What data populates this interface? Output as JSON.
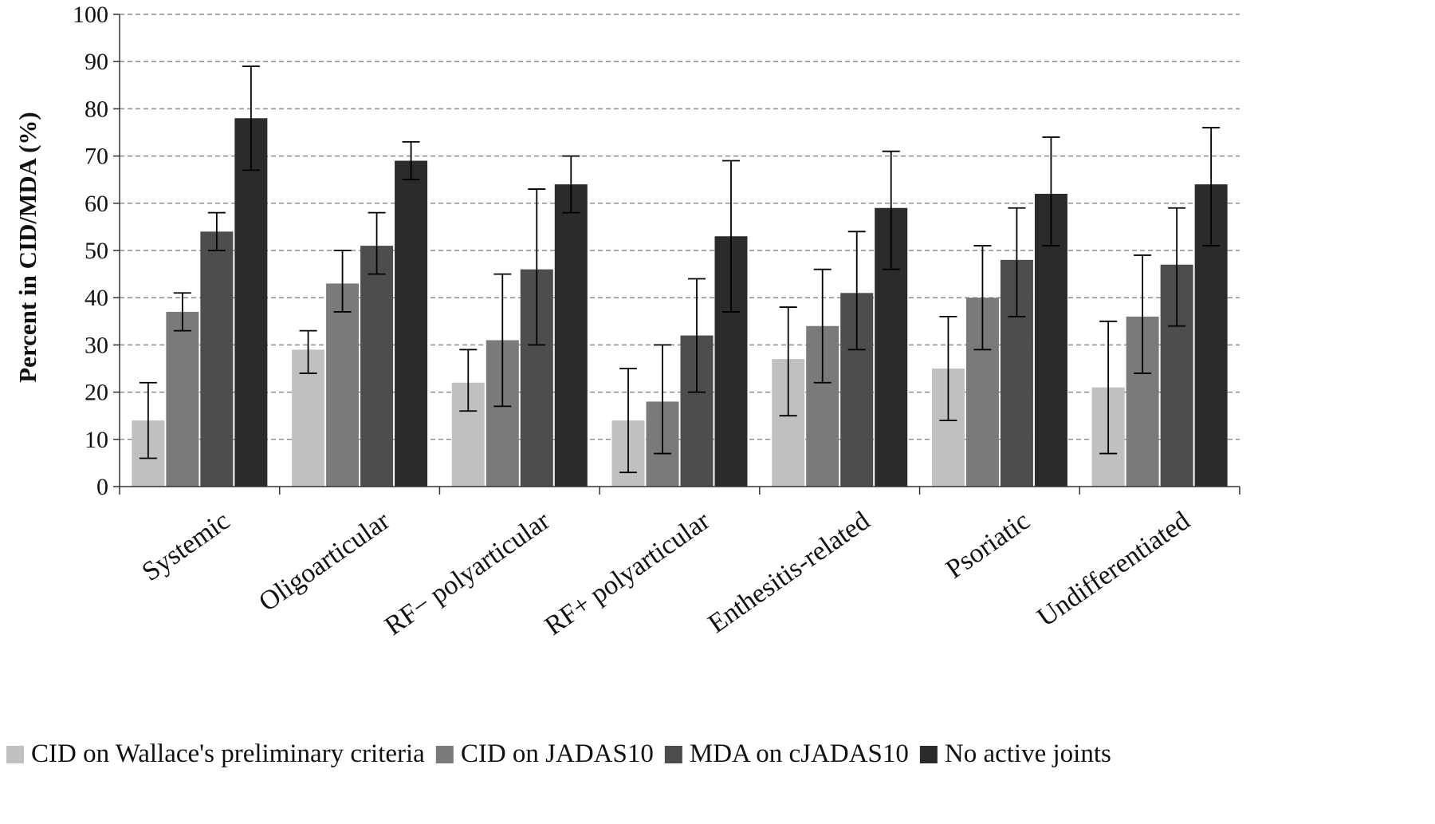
{
  "chart_data": {
    "type": "bar",
    "title": "",
    "xlabel": "",
    "ylabel": "Percent in CID/MDA (%)",
    "ylim": [
      0,
      100
    ],
    "yticks": [
      0,
      10,
      20,
      30,
      40,
      50,
      60,
      70,
      80,
      90,
      100
    ],
    "grid": "horizontal dashed",
    "legend_position": "bottom",
    "categories": [
      "Systemic",
      "Oligoarticular",
      "RF− polyarticular",
      "RF+ polyarticular",
      "Enthesitis-related",
      "Psoriatic",
      "Undifferentiated"
    ],
    "series": [
      {
        "name": "CID on Wallace's preliminary criteria",
        "color": "#c0c0c0",
        "values": [
          14,
          29,
          22,
          14,
          27,
          25,
          21
        ],
        "error_low": [
          6,
          24,
          16,
          3,
          15,
          14,
          7
        ],
        "error_high": [
          22,
          33,
          29,
          25,
          38,
          36,
          35
        ]
      },
      {
        "name": "CID on JADAS10",
        "color": "#7a7a7a",
        "values": [
          37,
          43,
          31,
          18,
          34,
          40,
          36
        ],
        "error_low": [
          33,
          37,
          17,
          7,
          22,
          29,
          24
        ],
        "error_high": [
          41,
          50,
          45,
          30,
          46,
          51,
          49
        ]
      },
      {
        "name": "MDA on cJADAS10",
        "color": "#4d4d4d",
        "values": [
          54,
          51,
          46,
          32,
          41,
          48,
          47
        ],
        "error_low": [
          50,
          45,
          30,
          20,
          29,
          36,
          34
        ],
        "error_high": [
          58,
          58,
          63,
          44,
          54,
          59,
          59
        ]
      },
      {
        "name": "No active joints",
        "color": "#2b2b2b",
        "values": [
          78,
          69,
          64,
          53,
          59,
          62,
          64
        ],
        "error_low": [
          67,
          65,
          58,
          37,
          46,
          51,
          51
        ],
        "error_high": [
          89,
          73,
          70,
          69,
          71,
          74,
          76
        ]
      }
    ]
  }
}
